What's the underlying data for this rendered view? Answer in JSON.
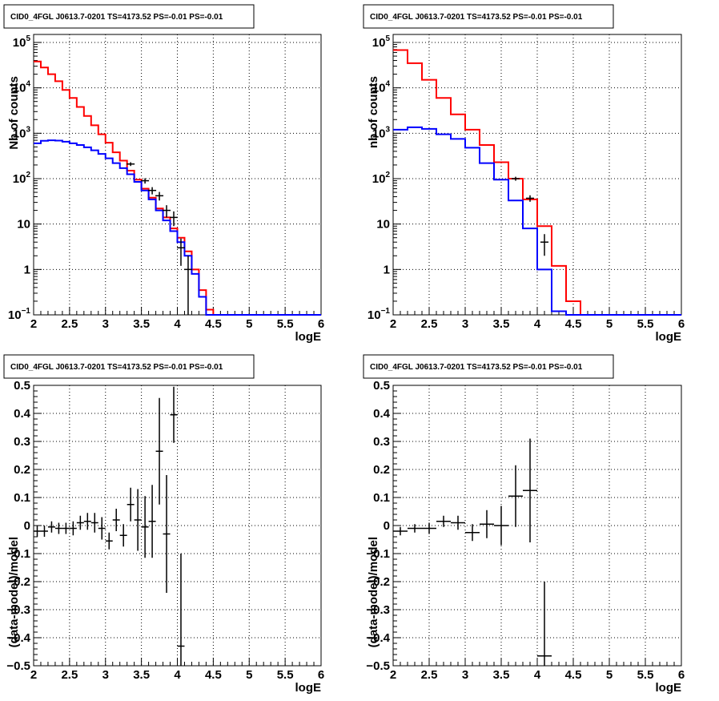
{
  "colors": {
    "model_total": "#ff0000",
    "model_bkg": "#0000ff",
    "data": "#000000",
    "grid": "#000000"
  },
  "chart_data": [
    {
      "type": "line",
      "panel": "top-left",
      "title": "CID0_4FGL J0613.7-0201 TS=4173.52 PS=-0.01 PS=-0.01",
      "xlabel": "logE",
      "ylabel": "Nb of counts",
      "log_y": true,
      "xlim": [
        2,
        6
      ],
      "ylim": [
        0.1,
        150000
      ],
      "grid": true,
      "xticks": [
        "2",
        "2.5",
        "3",
        "3.5",
        "4",
        "4.5",
        "5",
        "5.5",
        "6"
      ],
      "yticks": [
        {
          "value": 0.1,
          "base": "10",
          "exp": "−1"
        },
        {
          "value": 1,
          "text": "1"
        },
        {
          "value": 10,
          "text": "10"
        },
        {
          "value": 100,
          "base": "10",
          "exp": "2"
        },
        {
          "value": 1000,
          "base": "10",
          "exp": "3"
        },
        {
          "value": 10000,
          "base": "10",
          "exp": "4"
        },
        {
          "value": 100000,
          "base": "10",
          "exp": "5"
        }
      ],
      "bin_edges": [
        2.0,
        2.1,
        2.2,
        2.3,
        2.4,
        2.5,
        2.6,
        2.7,
        2.8,
        2.9,
        3.0,
        3.1,
        3.2,
        3.3,
        3.4,
        3.5,
        3.6,
        3.7,
        3.8,
        3.9,
        4.0,
        4.1,
        4.2,
        4.3,
        4.4,
        4.5,
        6.0
      ],
      "series": [
        {
          "values": [
            38000,
            28000,
            20000,
            14000,
            9000,
            6000,
            3800,
            2400,
            1500,
            950,
            620,
            380,
            250,
            150,
            95,
            60,
            38,
            22,
            14,
            8,
            5,
            2.5,
            1.0,
            0.35,
            0.13,
            0.1
          ]
        },
        {
          "values": [
            600,
            680,
            700,
            690,
            650,
            600,
            550,
            490,
            420,
            350,
            280,
            220,
            170,
            125,
            85,
            55,
            35,
            20,
            12,
            7,
            4,
            2,
            0.8,
            0.25,
            0.1,
            0.1
          ]
        }
      ],
      "points": [
        {
          "x": 3.35,
          "y": 210,
          "ylo": 190,
          "yhi": 230
        },
        {
          "x": 3.55,
          "y": 90,
          "ylo": 78,
          "yhi": 102
        },
        {
          "x": 3.65,
          "y": 55,
          "ylo": 45,
          "yhi": 65
        },
        {
          "x": 3.75,
          "y": 42,
          "ylo": 33,
          "yhi": 51
        },
        {
          "x": 3.85,
          "y": 20,
          "ylo": 14,
          "yhi": 26
        },
        {
          "x": 3.95,
          "y": 14,
          "ylo": 9,
          "yhi": 19
        },
        {
          "x": 4.05,
          "y": 3,
          "ylo": 1.2,
          "yhi": 4.8
        },
        {
          "x": 4.15,
          "y": 1,
          "ylo": 0.1,
          "yhi": 2
        }
      ]
    },
    {
      "type": "line",
      "panel": "top-right",
      "title": "CID0_4FGL J0613.7-0201 TS=4173.52 PS=-0.01 PS=-0.01",
      "xlabel": "logE",
      "ylabel": "nb of counts",
      "log_y": true,
      "xlim": [
        2,
        6
      ],
      "ylim": [
        0.1,
        150000
      ],
      "grid": true,
      "xticks": [
        "2",
        "2.5",
        "3",
        "3.5",
        "4",
        "4.5",
        "5",
        "5.5",
        "6"
      ],
      "yticks": [
        {
          "value": 0.1,
          "base": "10",
          "exp": "−1"
        },
        {
          "value": 1,
          "text": "1"
        },
        {
          "value": 10,
          "text": "10"
        },
        {
          "value": 100,
          "base": "10",
          "exp": "2"
        },
        {
          "value": 1000,
          "base": "10",
          "exp": "3"
        },
        {
          "value": 10000,
          "base": "10",
          "exp": "4"
        },
        {
          "value": 100000,
          "base": "10",
          "exp": "5"
        }
      ],
      "bin_edges": [
        2.0,
        2.2,
        2.4,
        2.6,
        2.8,
        3.0,
        3.2,
        3.4,
        3.6,
        3.8,
        4.0,
        4.2,
        4.4,
        4.6,
        6.0
      ],
      "series": [
        {
          "values": [
            68000,
            35000,
            15000,
            6000,
            2600,
            1200,
            550,
            230,
            100,
            35,
            9,
            1.2,
            0.2,
            0.1
          ]
        },
        {
          "values": [
            1200,
            1350,
            1250,
            950,
            750,
            480,
            220,
            95,
            33,
            8,
            1.0,
            0.12,
            0.1,
            0.1
          ]
        }
      ],
      "points": [
        {
          "x": 3.7,
          "y": 100,
          "ylo": 90,
          "yhi": 110
        },
        {
          "x": 3.9,
          "y": 37,
          "ylo": 31,
          "yhi": 43
        },
        {
          "x": 4.1,
          "y": 4,
          "ylo": 2,
          "yhi": 6
        }
      ]
    },
    {
      "type": "scatter",
      "panel": "bottom-left",
      "title": "CID0_4FGL J0613.7-0201 TS=4173.52 PS=-0.01 PS=-0.01",
      "xlabel": "logE",
      "ylabel": "(data-model)/model",
      "log_y": false,
      "xlim": [
        2,
        6
      ],
      "ylim": [
        -0.5,
        0.5
      ],
      "grid": true,
      "xticks": [
        "2",
        "2.5",
        "3",
        "3.5",
        "4",
        "4.5",
        "5",
        "5.5",
        "6"
      ],
      "yticks": [
        {
          "value": -0.5,
          "text": "−0.5"
        },
        {
          "value": -0.4,
          "text": "−0.4"
        },
        {
          "value": -0.3,
          "text": "−0.3"
        },
        {
          "value": -0.2,
          "text": "−0.2"
        },
        {
          "value": -0.1,
          "text": "−0.1"
        },
        {
          "value": 0,
          "text": "0"
        },
        {
          "value": 0.1,
          "text": "0.1"
        },
        {
          "value": 0.2,
          "text": "0.2"
        },
        {
          "value": 0.3,
          "text": "0.3"
        },
        {
          "value": 0.4,
          "text": "0.4"
        },
        {
          "value": 0.5,
          "text": "0.5"
        }
      ],
      "xhalf": 0.05,
      "points": [
        {
          "x": 2.05,
          "y": -0.02,
          "err": 0.02
        },
        {
          "x": 2.15,
          "y": -0.02,
          "err": 0.02
        },
        {
          "x": 2.25,
          "y": -0.005,
          "err": 0.02
        },
        {
          "x": 2.35,
          "y": -0.01,
          "err": 0.02
        },
        {
          "x": 2.45,
          "y": -0.01,
          "err": 0.02
        },
        {
          "x": 2.55,
          "y": -0.01,
          "err": 0.025
        },
        {
          "x": 2.65,
          "y": 0.01,
          "err": 0.025
        },
        {
          "x": 2.75,
          "y": 0.015,
          "err": 0.03
        },
        {
          "x": 2.85,
          "y": 0.01,
          "err": 0.035
        },
        {
          "x": 2.95,
          "y": -0.01,
          "err": 0.04
        },
        {
          "x": 3.05,
          "y": -0.055,
          "err": 0.03
        },
        {
          "x": 3.15,
          "y": 0.02,
          "err": 0.04
        },
        {
          "x": 3.25,
          "y": -0.035,
          "err": 0.04
        },
        {
          "x": 3.35,
          "y": 0.075,
          "err": 0.06
        },
        {
          "x": 3.45,
          "y": 0.02,
          "err": 0.11
        },
        {
          "x": 3.55,
          "y": -0.005,
          "err": 0.11
        },
        {
          "x": 3.65,
          "y": 0.015,
          "err": 0.13
        },
        {
          "x": 3.75,
          "y": 0.265,
          "err": 0.19
        },
        {
          "x": 3.85,
          "y": -0.03,
          "err": 0.21
        },
        {
          "x": 3.95,
          "y": 0.395,
          "err": 0.1
        },
        {
          "x": 4.05,
          "y": -0.43,
          "err": 0.33
        }
      ]
    },
    {
      "type": "scatter",
      "panel": "bottom-right",
      "title": "CID0_4FGL J0613.7-0201 TS=4173.52 PS=-0.01 PS=-0.01",
      "xlabel": "logE",
      "ylabel": "(data-model)/model",
      "log_y": false,
      "xlim": [
        2,
        6
      ],
      "ylim": [
        -0.5,
        0.5
      ],
      "grid": true,
      "xticks": [
        "2",
        "2.5",
        "3",
        "3.5",
        "4",
        "4.5",
        "5",
        "5.5",
        "6"
      ],
      "yticks": [
        {
          "value": -0.5,
          "text": "−0.5"
        },
        {
          "value": -0.4,
          "text": "−0.4"
        },
        {
          "value": -0.3,
          "text": "−0.3"
        },
        {
          "value": -0.2,
          "text": "−0.2"
        },
        {
          "value": -0.1,
          "text": "−0.1"
        },
        {
          "value": 0,
          "text": "0"
        },
        {
          "value": 0.1,
          "text": "0.1"
        },
        {
          "value": 0.2,
          "text": "0.2"
        },
        {
          "value": 0.3,
          "text": "0.3"
        },
        {
          "value": 0.4,
          "text": "0.4"
        },
        {
          "value": 0.5,
          "text": "0.5"
        }
      ],
      "xhalf": 0.1,
      "points": [
        {
          "x": 2.1,
          "y": -0.02,
          "err": 0.015
        },
        {
          "x": 2.3,
          "y": -0.01,
          "err": 0.015
        },
        {
          "x": 2.5,
          "y": -0.01,
          "err": 0.02
        },
        {
          "x": 2.7,
          "y": 0.015,
          "err": 0.02
        },
        {
          "x": 2.9,
          "y": 0.01,
          "err": 0.025
        },
        {
          "x": 3.1,
          "y": -0.025,
          "err": 0.03
        },
        {
          "x": 3.3,
          "y": 0.005,
          "err": 0.05
        },
        {
          "x": 3.5,
          "y": 0.0,
          "err": 0.07
        },
        {
          "x": 3.7,
          "y": 0.105,
          "err": 0.11
        },
        {
          "x": 3.9,
          "y": 0.125,
          "err": 0.185
        },
        {
          "x": 4.1,
          "y": -0.465,
          "err": 0.265
        }
      ]
    }
  ]
}
